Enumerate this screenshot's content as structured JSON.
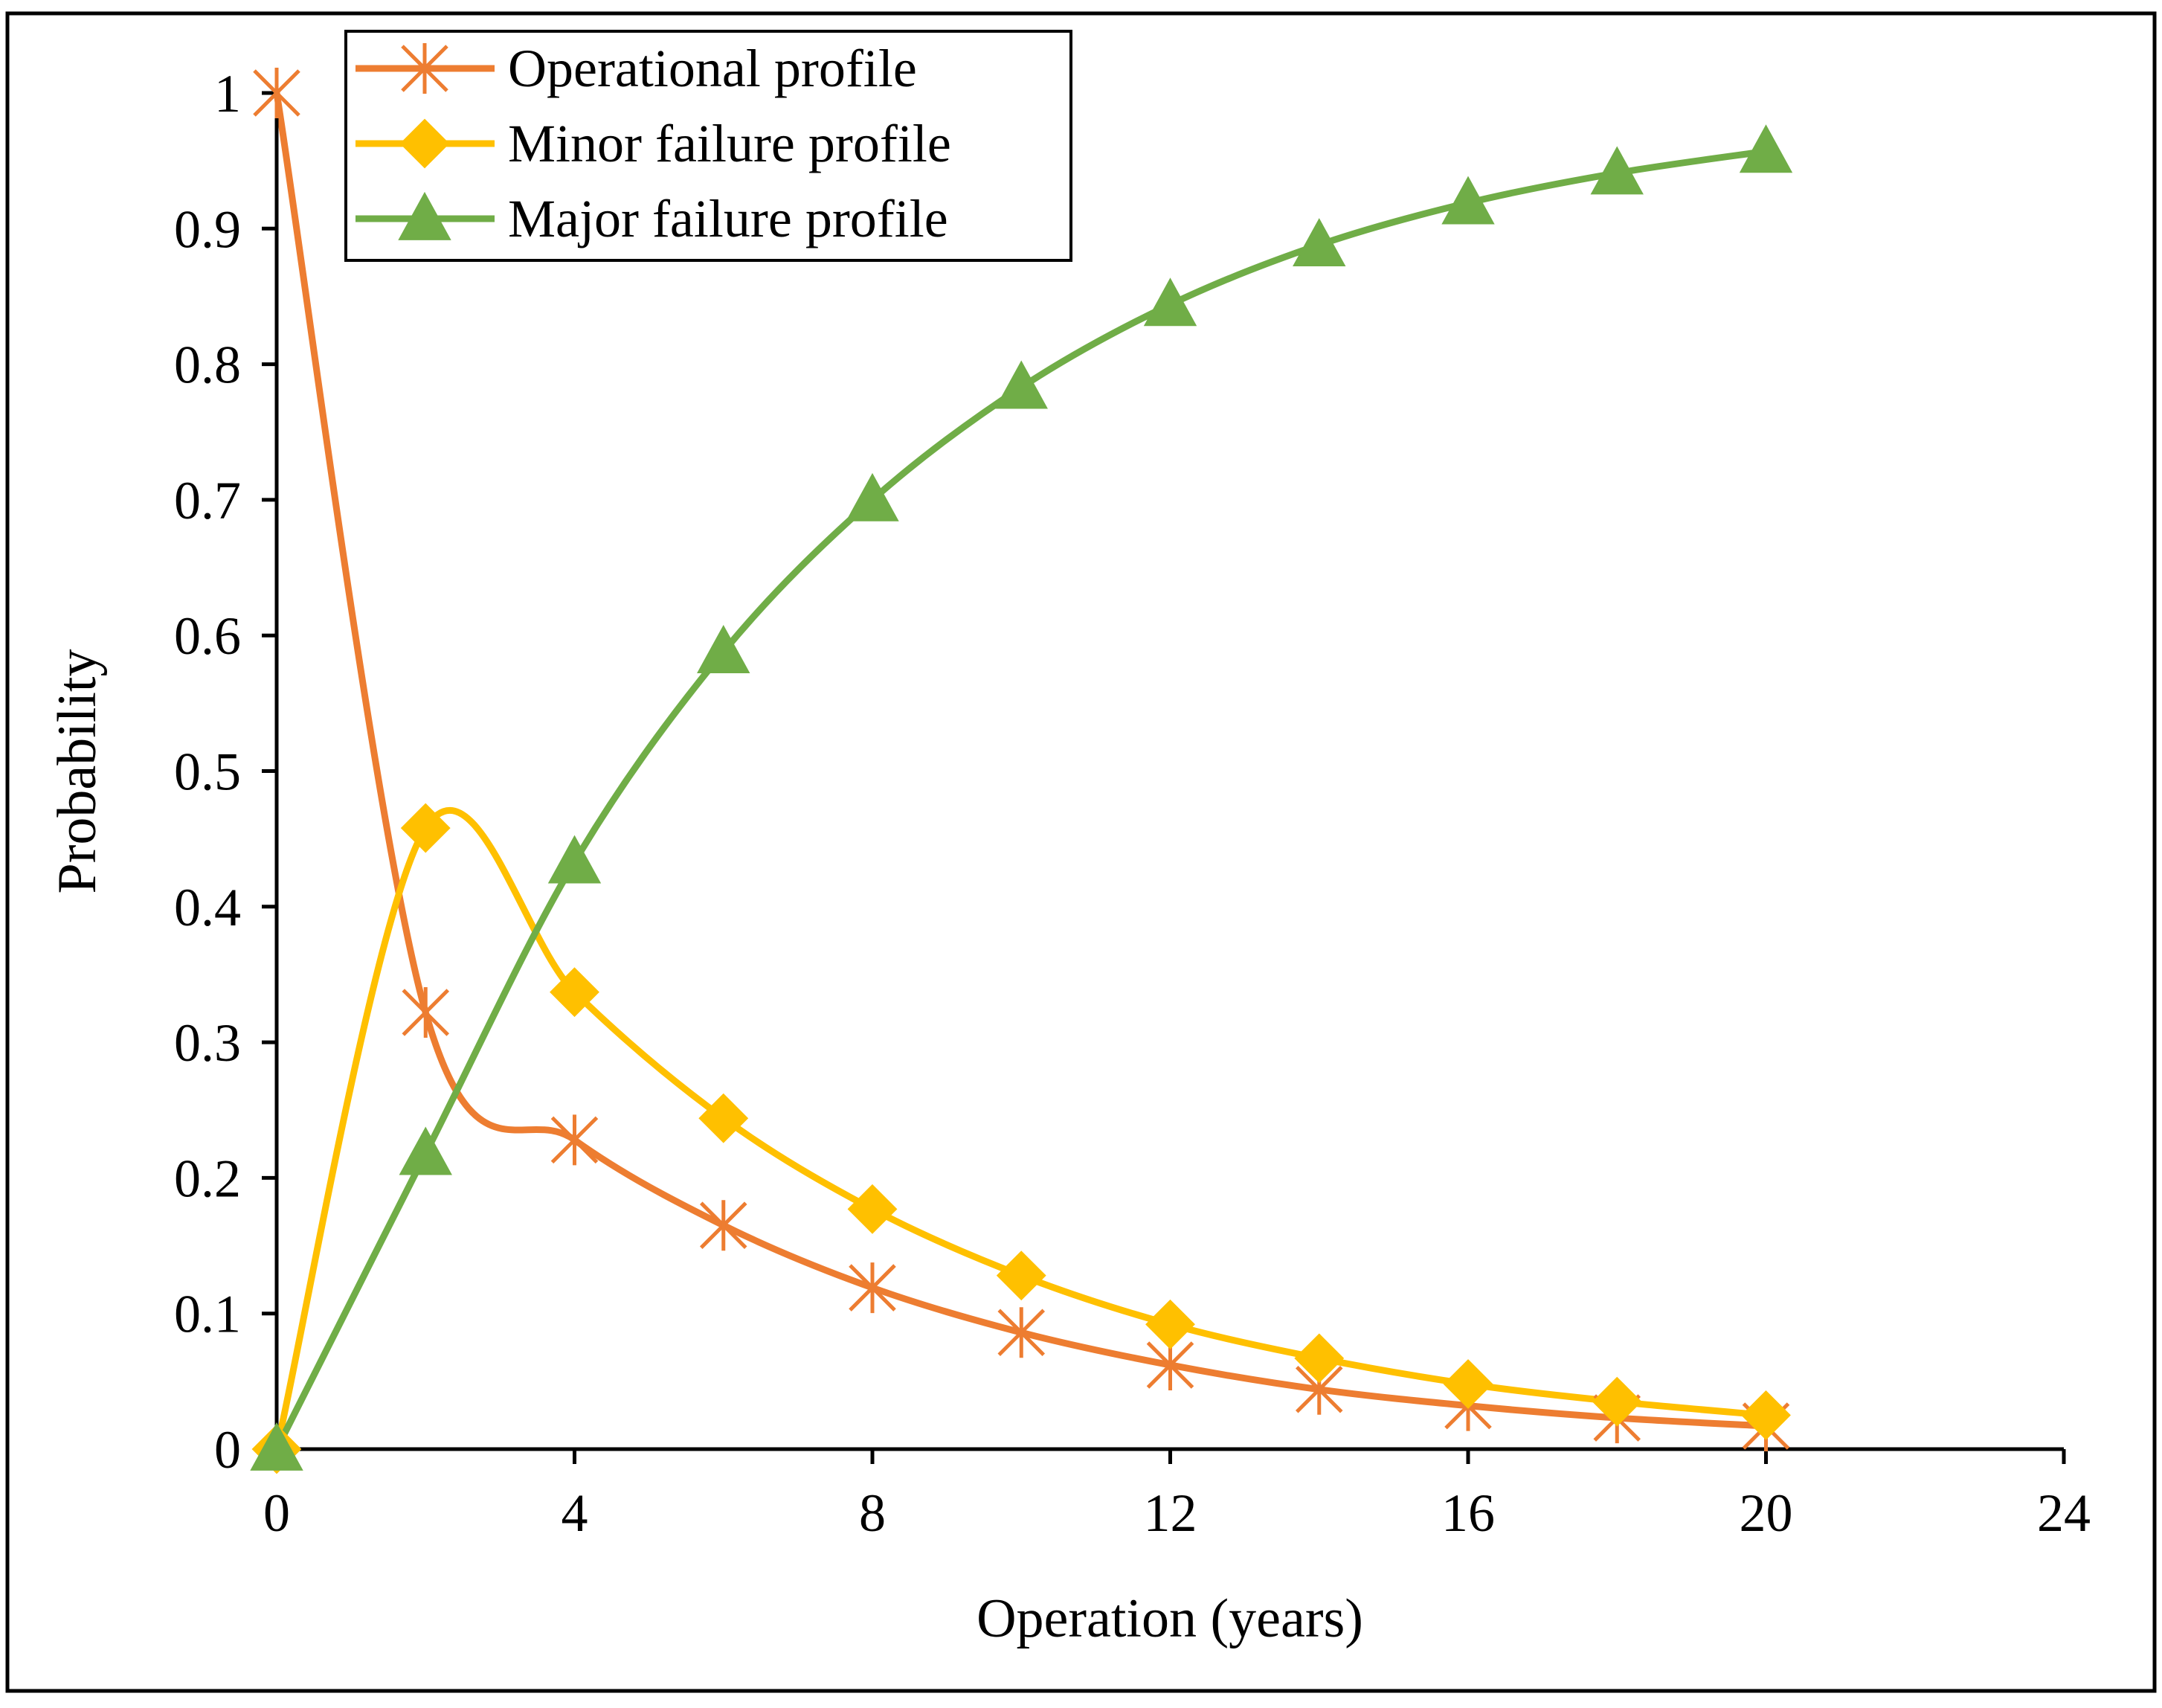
{
  "chart_data": {
    "type": "line",
    "title": "",
    "xlabel": "Operation (years)",
    "ylabel": "Probability",
    "xlim": [
      0,
      24
    ],
    "ylim": [
      0,
      1
    ],
    "x_ticks": [
      0,
      4,
      8,
      12,
      16,
      20,
      24
    ],
    "y_ticks": [
      0,
      0.1,
      0.2,
      0.3,
      0.4,
      0.5,
      0.6,
      0.7,
      0.8,
      0.9,
      1
    ],
    "x_tick_labels": [
      "0",
      "4",
      "8",
      "12",
      "16",
      "20",
      "24"
    ],
    "y_tick_labels": [
      "0",
      "0.1",
      "0.2",
      "0.3",
      "0.4",
      "0.5",
      "0.6",
      "0.7",
      "0.8",
      "0.9",
      "1"
    ],
    "grid": false,
    "legend_position": "top-left",
    "x": [
      0,
      2,
      4,
      6,
      8,
      10,
      12,
      14,
      16,
      18,
      20
    ],
    "series": [
      {
        "name": "Operational profile",
        "color": "#ED7D31",
        "marker": "asterisk",
        "values": [
          1.0,
          0.322,
          0.228,
          0.165,
          0.119,
          0.086,
          0.062,
          0.044,
          0.032,
          0.023,
          0.017
        ]
      },
      {
        "name": "Minor failure profile",
        "color": "#FFC000",
        "marker": "diamond",
        "values": [
          0.0,
          0.458,
          0.337,
          0.244,
          0.177,
          0.128,
          0.092,
          0.067,
          0.048,
          0.035,
          0.025
        ]
      },
      {
        "name": "Major failure profile",
        "color": "#70AD47",
        "marker": "triangle",
        "values": [
          0.0,
          0.218,
          0.433,
          0.588,
          0.7,
          0.783,
          0.844,
          0.888,
          0.919,
          0.941,
          0.957
        ]
      }
    ]
  }
}
